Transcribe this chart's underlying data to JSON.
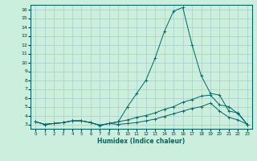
{
  "xlabel": "Humidex (Indice chaleur)",
  "bg_color": "#cceedd",
  "grid_color": "#aacccc",
  "line_color": "#006666",
  "xlim": [
    -0.5,
    23.5
  ],
  "ylim": [
    2.5,
    16.5
  ],
  "yticks": [
    3,
    4,
    5,
    6,
    7,
    8,
    9,
    10,
    11,
    12,
    13,
    14,
    15,
    16
  ],
  "xticks": [
    0,
    1,
    2,
    3,
    4,
    5,
    6,
    7,
    8,
    9,
    10,
    11,
    12,
    13,
    14,
    15,
    16,
    17,
    18,
    19,
    20,
    21,
    22,
    23
  ],
  "lines": [
    [
      3.3,
      3.0,
      3.1,
      3.2,
      3.4,
      3.4,
      3.2,
      2.9,
      3.1,
      3.3,
      5.0,
      6.5,
      8.0,
      10.5,
      13.5,
      15.8,
      16.2,
      12.0,
      8.5,
      6.5,
      6.3,
      4.5,
      4.3,
      3.0
    ],
    [
      3.3,
      3.0,
      3.1,
      3.2,
      3.4,
      3.4,
      3.2,
      2.9,
      3.1,
      3.3,
      3.5,
      3.8,
      4.0,
      4.3,
      4.7,
      5.0,
      5.5,
      5.8,
      6.2,
      6.3,
      5.2,
      5.0,
      4.2,
      3.0
    ],
    [
      3.3,
      3.0,
      3.1,
      3.2,
      3.4,
      3.4,
      3.2,
      2.9,
      3.1,
      3.0,
      3.1,
      3.2,
      3.4,
      3.6,
      3.9,
      4.2,
      4.5,
      4.8,
      5.0,
      5.4,
      4.5,
      3.8,
      3.5,
      3.0
    ]
  ]
}
